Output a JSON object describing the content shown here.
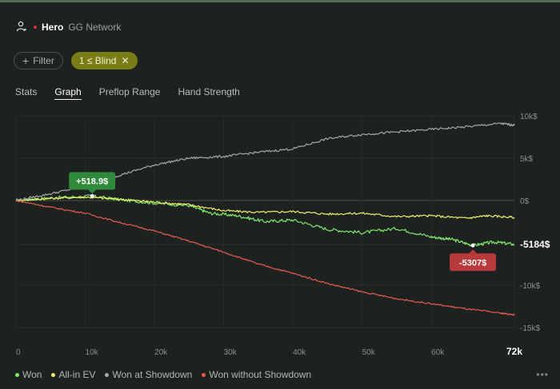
{
  "header": {
    "player": "Hero",
    "network": "GG Network"
  },
  "chips": {
    "filter_label": "Filter",
    "blind_label": "1 ≤ Blind"
  },
  "tabs": [
    "Stats",
    "Graph",
    "Preflop Range",
    "Hand Strength"
  ],
  "active_tab": "Graph",
  "legend": [
    {
      "label": "Won",
      "color": "#7ee86b"
    },
    {
      "label": "All-in EV",
      "color": "#eef06a"
    },
    {
      "label": "Won at Showdown",
      "color": "#a7a7a7"
    },
    {
      "label": "Won without Showdown",
      "color": "#e55b52"
    }
  ],
  "chart_data": {
    "type": "line",
    "x_ticks": [
      "0",
      "10k",
      "20k",
      "30k",
      "40k",
      "50k",
      "60k",
      "72k"
    ],
    "y_ticks": [
      "10k$",
      "5k$",
      "0$",
      "-5184$",
      "-10k$",
      "-15k$"
    ],
    "xlim": [
      0,
      72000
    ],
    "ylim": [
      -15000,
      10000
    ],
    "annotations": [
      {
        "text": "+518.9$",
        "x": 11000,
        "y": 518.9,
        "color": "#2f8a3c"
      },
      {
        "text": "-5307$",
        "x": 66000,
        "y": -5307,
        "color": "#b93a3a"
      }
    ],
    "series": [
      {
        "name": "Won",
        "color": "#7ee86b",
        "x": [
          0,
          5000,
          11000,
          15000,
          20000,
          25000,
          28000,
          32000,
          36000,
          40000,
          45000,
          50000,
          55000,
          60000,
          63000,
          66000,
          69000,
          72000
        ],
        "y": [
          0,
          300,
          519,
          100,
          -300,
          -600,
          -1500,
          -1800,
          -2500,
          -2300,
          -3400,
          -3800,
          -3300,
          -4300,
          -4600,
          -5307,
          -4900,
          -5184
        ]
      },
      {
        "name": "All-in EV",
        "color": "#eef06a",
        "x": [
          0,
          5000,
          10000,
          15000,
          20000,
          25000,
          30000,
          35000,
          40000,
          45000,
          50000,
          55000,
          60000,
          65000,
          68000,
          72000
        ],
        "y": [
          0,
          250,
          400,
          150,
          -200,
          -500,
          -1200,
          -1400,
          -1300,
          -1600,
          -1500,
          -1900,
          -1800,
          -2100,
          -1800,
          -2000
        ]
      },
      {
        "name": "Won at Showdown",
        "color": "#a7a7a7",
        "x": [
          0,
          5000,
          10000,
          15000,
          20000,
          25000,
          30000,
          35000,
          40000,
          45000,
          50000,
          55000,
          60000,
          65000,
          70000,
          72000
        ],
        "y": [
          0,
          800,
          1700,
          3000,
          4200,
          5000,
          5200,
          5700,
          6100,
          7300,
          7800,
          8100,
          8400,
          8700,
          9100,
          8900
        ]
      },
      {
        "name": "Won without Showdown",
        "color": "#e55b52",
        "x": [
          0,
          5000,
          10000,
          15000,
          20000,
          25000,
          30000,
          35000,
          40000,
          45000,
          50000,
          55000,
          60000,
          65000,
          70000,
          72000
        ],
        "y": [
          0,
          -800,
          -1500,
          -2600,
          -3600,
          -4800,
          -6100,
          -7500,
          -8600,
          -9800,
          -10800,
          -11600,
          -12200,
          -12800,
          -13300,
          -13500
        ]
      }
    ]
  }
}
